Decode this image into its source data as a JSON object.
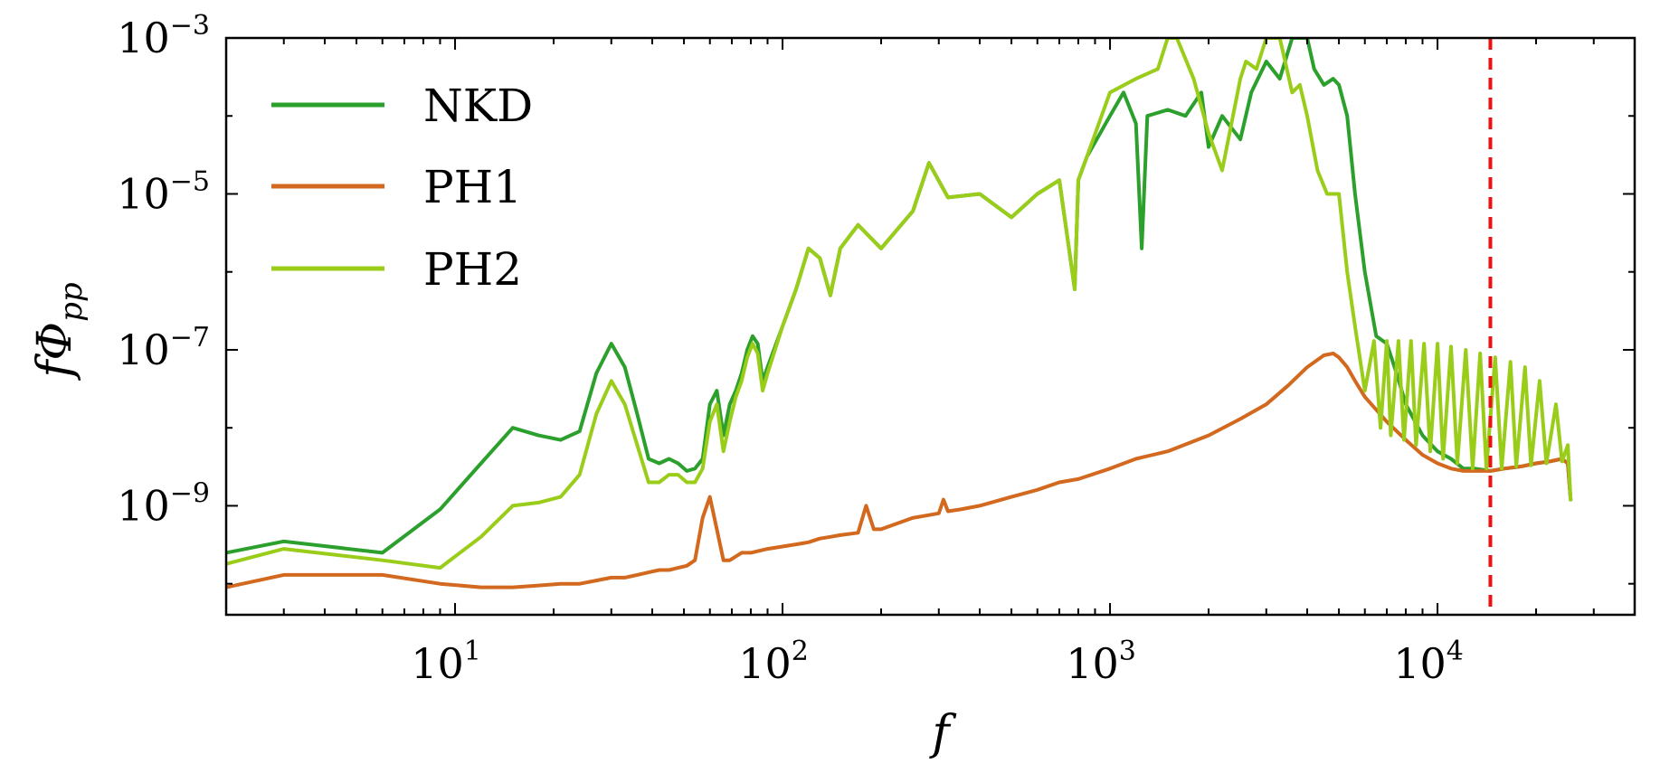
{
  "chart_data": {
    "type": "line",
    "title": "",
    "xlabel": "f",
    "ylabel": {
      "base": "fΦ",
      "sub": "pp"
    },
    "xscale": "log",
    "yscale": "log",
    "xlim": [
      2,
      40000
    ],
    "ylim": [
      4e-11,
      0.001
    ],
    "legend_position": "top-left",
    "x_ticks": [
      {
        "value": 10,
        "base": "10",
        "exp": "1"
      },
      {
        "value": 100,
        "base": "10",
        "exp": "2"
      },
      {
        "value": 1000,
        "base": "10",
        "exp": "3"
      },
      {
        "value": 10000,
        "base": "10",
        "exp": "4"
      }
    ],
    "y_ticks": [
      {
        "value": 0.001,
        "base": "10",
        "exp": "−3"
      },
      {
        "value": 1e-05,
        "base": "10",
        "exp": "−5"
      },
      {
        "value": 1e-07,
        "base": "10",
        "exp": "−7"
      },
      {
        "value": 1e-09,
        "base": "10",
        "exp": "−9"
      }
    ],
    "reference_line": {
      "x": 14500,
      "color": "#ee1111",
      "style": "dashed"
    },
    "series": [
      {
        "name": "NKD",
        "color": "#2ca02c",
        "x": [
          2,
          3,
          6,
          9,
          12,
          15,
          18,
          21,
          24,
          27,
          30,
          33,
          36,
          39,
          42,
          45,
          48,
          51,
          54,
          57,
          60,
          63,
          66,
          69,
          72,
          75,
          78,
          81,
          84,
          87,
          90,
          100,
          110,
          120,
          130,
          140,
          150,
          170,
          200,
          250,
          280,
          320,
          400,
          500,
          600,
          700,
          780,
          800,
          850,
          1000,
          1100,
          1200,
          1250,
          1300,
          1500,
          1700,
          1900,
          2000,
          2200,
          2500,
          2700,
          3000,
          3300,
          3600,
          3800,
          4000,
          4200,
          4500,
          4800,
          5000,
          5300,
          5600,
          6000,
          6500,
          7000,
          7500,
          8000,
          9000,
          10000,
          11000,
          12000,
          13000,
          14500,
          16000,
          18000,
          20000,
          22000,
          24000,
          25000,
          25500
        ],
        "y": [
          2.5e-10,
          3.5e-10,
          2.5e-10,
          9e-10,
          3.5e-09,
          1e-08,
          8e-09,
          7e-09,
          9e-09,
          5e-08,
          1.2e-07,
          6e-08,
          1.5e-08,
          4e-09,
          3.5e-09,
          4e-09,
          3.5e-09,
          2.8e-09,
          3e-09,
          4e-09,
          2e-08,
          3e-08,
          8e-09,
          2e-08,
          3e-08,
          5e-08,
          1e-07,
          1.5e-07,
          1.2e-07,
          4e-08,
          6e-08,
          2e-07,
          6e-07,
          2e-06,
          1.5e-06,
          5e-07,
          2e-06,
          4e-06,
          2e-06,
          6e-06,
          2.5e-05,
          9e-06,
          1e-05,
          5e-06,
          1e-05,
          1.5e-05,
          6e-07,
          1.5e-05,
          3e-05,
          0.0001,
          0.0002,
          8e-05,
          2e-06,
          0.0001,
          0.00012,
          0.0001,
          0.0002,
          4e-05,
          0.0001,
          5e-05,
          0.0002,
          0.0005,
          0.0003,
          0.001,
          0.001,
          0.001,
          0.0004,
          0.00025,
          0.0003,
          0.00025,
          0.0001,
          1e-05,
          1e-06,
          1.5e-07,
          1.2e-07,
          5e-08,
          2e-08,
          8e-09,
          5e-09,
          4e-09,
          3e-09,
          3e-09,
          2.8e-09,
          3e-09,
          3.2e-09,
          3.5e-09,
          3.7e-09,
          4e-09,
          3.5e-09,
          1.2e-09
        ]
      },
      {
        "name": "PH1",
        "color": "#d2691e",
        "x": [
          2,
          3,
          6,
          9,
          12,
          15,
          18,
          21,
          24,
          27,
          30,
          33,
          36,
          39,
          42,
          45,
          48,
          51,
          54,
          57,
          60,
          63,
          66,
          69,
          75,
          80,
          90,
          100,
          110,
          120,
          130,
          140,
          150,
          170,
          180,
          190,
          200,
          250,
          300,
          310,
          320,
          350,
          400,
          500,
          600,
          700,
          800,
          1000,
          1200,
          1500,
          2000,
          2500,
          3000,
          3500,
          4000,
          4500,
          4800,
          5000,
          5300,
          5600,
          6000,
          7000,
          8000,
          9000,
          10000,
          11000,
          12000,
          13000,
          14500,
          16000,
          18000,
          20000,
          22000,
          24000,
          25000,
          25500
        ],
        "y": [
          9e-11,
          1.3e-10,
          1.3e-10,
          1e-10,
          9e-11,
          9e-11,
          9.5e-11,
          1e-10,
          1e-10,
          1.1e-10,
          1.2e-10,
          1.2e-10,
          1.3e-10,
          1.4e-10,
          1.5e-10,
          1.5e-10,
          1.6e-10,
          1.7e-10,
          2e-10,
          7e-10,
          1.3e-09,
          5e-10,
          2e-10,
          2e-10,
          2.5e-10,
          2.5e-10,
          2.8e-10,
          3e-10,
          3.2e-10,
          3.4e-10,
          3.8e-10,
          4e-10,
          4.2e-10,
          4.5e-10,
          1e-09,
          5e-10,
          5e-10,
          7e-10,
          8e-10,
          1.2e-09,
          8.5e-10,
          9e-10,
          1e-09,
          1.3e-09,
          1.6e-09,
          2e-09,
          2.2e-09,
          3e-09,
          4e-09,
          5e-09,
          8e-09,
          1.3e-08,
          2e-08,
          3.5e-08,
          6e-08,
          8.5e-08,
          9e-08,
          8e-08,
          6e-08,
          4e-08,
          2.5e-08,
          1.2e-08,
          7e-09,
          4.5e-09,
          3.5e-09,
          3e-09,
          2.8e-09,
          2.8e-09,
          2.8e-09,
          3e-09,
          3.2e-09,
          3.5e-09,
          3.7e-09,
          4e-09,
          3.5e-09,
          1.2e-09
        ]
      },
      {
        "name": "PH2",
        "color": "#9acd1a",
        "x": [
          2,
          3,
          6,
          9,
          12,
          15,
          18,
          21,
          24,
          27,
          30,
          33,
          36,
          39,
          42,
          45,
          48,
          51,
          54,
          57,
          60,
          63,
          66,
          69,
          72,
          75,
          78,
          81,
          84,
          87,
          90,
          100,
          110,
          120,
          130,
          140,
          150,
          170,
          200,
          250,
          280,
          320,
          400,
          500,
          600,
          700,
          780,
          800,
          850,
          1000,
          1200,
          1400,
          1500,
          1600,
          1800,
          2000,
          2200,
          2500,
          2600,
          2800,
          3000,
          3300,
          3600,
          3800,
          4000,
          4300,
          4600,
          5000,
          5300,
          5600,
          6000,
          6400,
          6700,
          7000,
          7200,
          7600,
          7900,
          8300,
          8600,
          9100,
          9500,
          10000,
          10400,
          11000,
          11500,
          12200,
          12800,
          13500,
          14100,
          15000,
          15700,
          16700,
          17400,
          18500,
          19300,
          20500,
          21500,
          23000,
          24000,
          25000,
          25500
        ],
        "y": [
          1.8e-10,
          2.8e-10,
          2e-10,
          1.6e-10,
          4e-10,
          1e-09,
          1.1e-09,
          1.3e-09,
          2.5e-09,
          1.5e-08,
          4e-08,
          2e-08,
          6e-09,
          2e-09,
          2e-09,
          2.5e-09,
          2.5e-09,
          2e-09,
          2e-09,
          3e-09,
          1.2e-08,
          2e-08,
          5e-09,
          1.2e-08,
          2.5e-08,
          4e-08,
          8e-08,
          1.2e-07,
          9e-08,
          3e-08,
          5e-08,
          2e-07,
          6e-07,
          2e-06,
          1.5e-06,
          5e-07,
          2e-06,
          4e-06,
          2e-06,
          6e-06,
          2.5e-05,
          9e-06,
          1e-05,
          5e-06,
          1e-05,
          1.5e-05,
          6e-07,
          1.5e-05,
          3e-05,
          0.0002,
          0.0003,
          0.0004,
          0.001,
          0.001,
          0.0003,
          6e-05,
          2e-05,
          0.0003,
          0.0005,
          0.0004,
          0.001,
          0.001,
          0.0002,
          0.00025,
          0.0001,
          2e-05,
          1e-05,
          1e-05,
          1e-06,
          2e-07,
          3e-08,
          1.3e-07,
          1e-08,
          1.3e-07,
          8e-09,
          1.3e-07,
          7e-09,
          1.3e-07,
          6e-09,
          1.2e-07,
          5e-09,
          1.2e-07,
          4e-09,
          1.1e-07,
          3.5e-09,
          1e-07,
          3e-09,
          9e-08,
          3e-09,
          8e-08,
          3e-09,
          7e-08,
          3.2e-09,
          6e-08,
          3.3e-09,
          4e-08,
          3.5e-09,
          2e-08,
          3.7e-09,
          6e-09,
          1.2e-09
        ]
      }
    ]
  }
}
